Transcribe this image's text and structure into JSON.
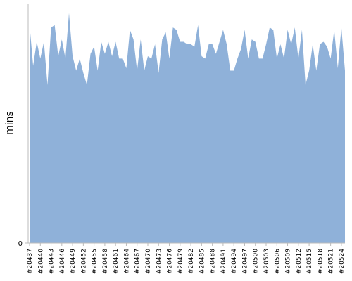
{
  "chart_data": {
    "type": "area",
    "y_label": "mins",
    "color": "#8fb1d9",
    "categories": [
      "#20437",
      null,
      null,
      "#20440",
      null,
      null,
      "#20443",
      null,
      null,
      "#20446",
      null,
      null,
      "#20449",
      null,
      null,
      "#20452",
      null,
      null,
      "#20455",
      null,
      null,
      "#20458",
      null,
      null,
      "#20461",
      null,
      null,
      "#20464",
      null,
      null,
      "#20467",
      null,
      null,
      "#20470",
      null,
      null,
      "#20473",
      null,
      null,
      "#20476",
      null,
      null,
      "#20479",
      null,
      null,
      "#20482",
      null,
      null,
      "#20485",
      null,
      null,
      "#20488",
      null,
      null,
      "#20491",
      null,
      null,
      "#20494",
      null,
      null,
      "#20497",
      null,
      null,
      "#20500",
      null,
      null,
      "#20503",
      null,
      null,
      "#20506",
      null,
      null,
      "#20509",
      null,
      null,
      "#20512",
      null,
      null,
      "#20515",
      null,
      null,
      "#20518",
      null,
      null,
      "#20521",
      null,
      null,
      "#20524",
      null
    ],
    "values": [
      91,
      74,
      84,
      77,
      84,
      66,
      90,
      91,
      78,
      85,
      77,
      96,
      78,
      72,
      77,
      71,
      66,
      79,
      82,
      72,
      84,
      79,
      84,
      78,
      84,
      77,
      77,
      73,
      89,
      85,
      72,
      85,
      72,
      78,
      77,
      83,
      71,
      85,
      88,
      77,
      90,
      89,
      84,
      84,
      83,
      83,
      82,
      91,
      78,
      77,
      83,
      83,
      79,
      84,
      89,
      83,
      72,
      72,
      77,
      81,
      89,
      77,
      85,
      84,
      77,
      77,
      83,
      90,
      89,
      77,
      83,
      77,
      89,
      83,
      90,
      77,
      89,
      66,
      72,
      83,
      72,
      83,
      84,
      82,
      77,
      89,
      73,
      90,
      72
    ],
    "ylim": [
      0,
      100
    ],
    "yticks": [
      0
    ]
  }
}
